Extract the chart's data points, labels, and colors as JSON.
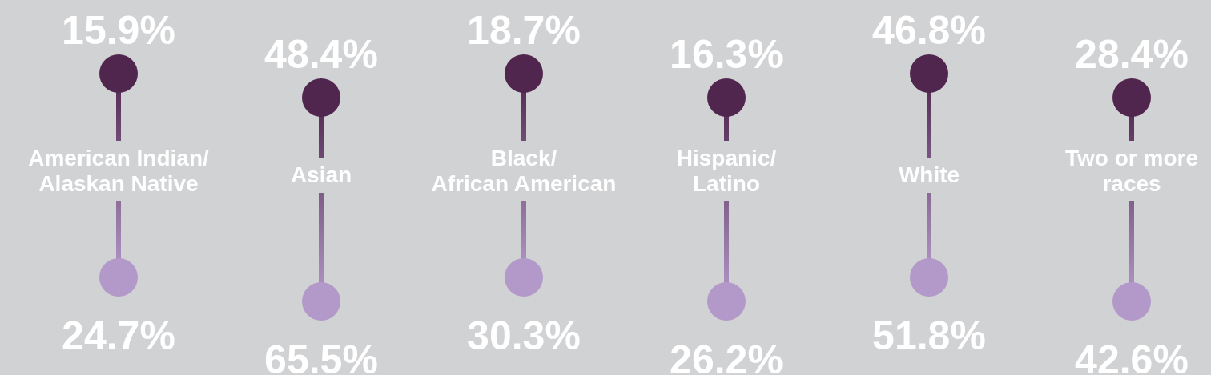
{
  "chart_data": {
    "type": "other",
    "categories": [
      "American Indian/\nAlaskan Native",
      "Asian",
      "Black/\nAfrican American",
      "Hispanic/\nLatino",
      "White",
      "Two or more\nraces"
    ],
    "series": [
      {
        "color": "#50264f",
        "values": [
          15.9,
          48.4,
          18.7,
          16.3,
          46.8,
          28.4
        ],
        "value_labels": [
          "15.9%",
          "48.4%",
          "18.7%",
          "16.3%",
          "46.8%",
          "28.4%"
        ]
      },
      {
        "color": "#b399c9",
        "values": [
          24.7,
          65.5,
          30.3,
          26.2,
          51.8,
          42.6
        ],
        "value_labels": [
          "24.7%",
          "65.5%",
          "30.3%",
          "26.2%",
          "51.8%",
          "42.6%"
        ]
      }
    ]
  }
}
